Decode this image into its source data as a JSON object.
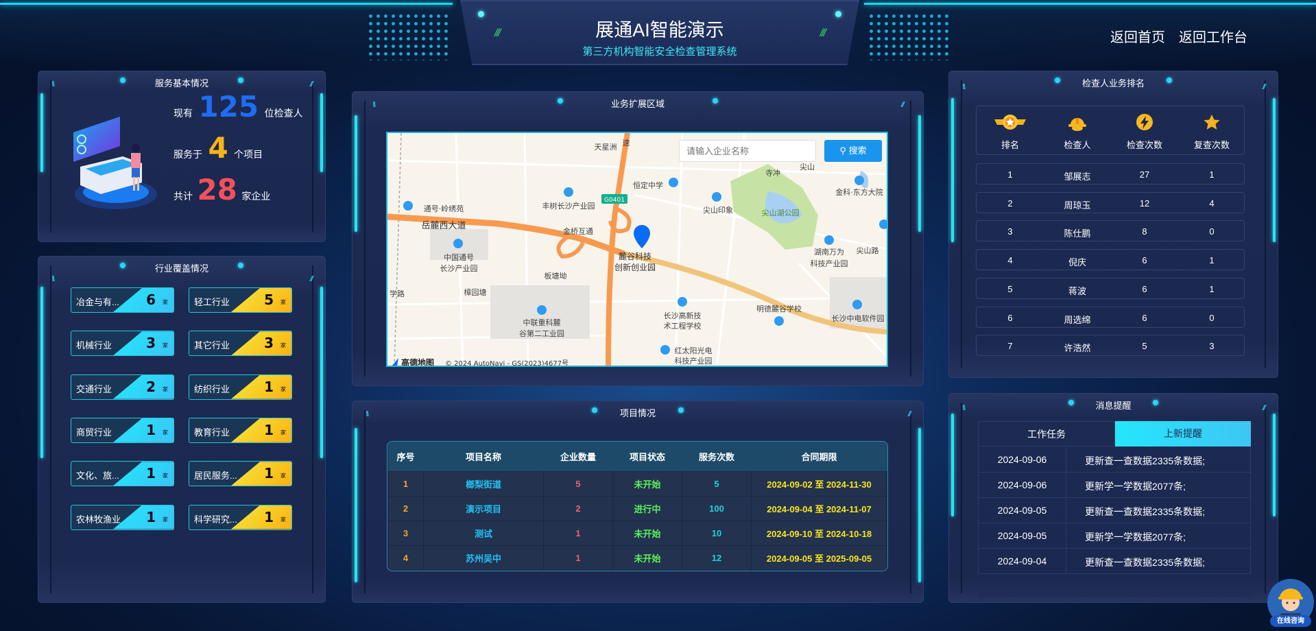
{
  "header": {
    "title": "展通AI智能演示",
    "subtitle": "第三方机构智能安全检查管理系统",
    "nav": [
      "返回首页",
      "返回工作台"
    ]
  },
  "service": {
    "title": "服务基本情况",
    "lines": [
      {
        "prefix": "现有",
        "value": "125",
        "suffix": "位检查人",
        "color": "#1f6df5"
      },
      {
        "prefix": "服务于",
        "value": "4",
        "suffix": "个项目",
        "color": "#f7b318"
      },
      {
        "prefix": "共计",
        "value": "28",
        "suffix": "家企业",
        "color": "#f4505a"
      }
    ]
  },
  "industry": {
    "title": "行业覆盖情况",
    "unit": "家",
    "items": [
      {
        "label": "冶金与有...",
        "count": "6"
      },
      {
        "label": "轻工行业",
        "count": "5"
      },
      {
        "label": "机械行业",
        "count": "3"
      },
      {
        "label": "其它行业",
        "count": "3"
      },
      {
        "label": "交通行业",
        "count": "2"
      },
      {
        "label": "纺织行业",
        "count": "1"
      },
      {
        "label": "商贸行业",
        "count": "1"
      },
      {
        "label": "教育行业",
        "count": "1"
      },
      {
        "label": "文化、旅...",
        "count": "1"
      },
      {
        "label": "居民服务...",
        "count": "1"
      },
      {
        "label": "农林牧渔业",
        "count": "1"
      },
      {
        "label": "科学研究...",
        "count": "1"
      }
    ],
    "colors": {
      "left": [
        "#22e9fb",
        "#3ac3f5"
      ],
      "right": [
        "#f5ea3d",
        "#fbb012"
      ]
    }
  },
  "map": {
    "title": "业务扩展区域",
    "search_placeholder": "请输入企业名称",
    "search_button": "搜索",
    "labels": [
      "天星洲",
      "速",
      "恒定中学",
      "丰树长沙产业园",
      "G0401",
      "通号·岭绣苑",
      "尖山印象",
      "尖山湖公园",
      "寺冲",
      "尖山",
      "金科·东方大院",
      "岳麓西大道",
      "金桥互通",
      "麓谷科技",
      "创新创业园",
      "中国通号",
      "长沙产业园",
      "湖南万为",
      "科技产业园",
      "尖山路",
      "板塘坳",
      "学路",
      "樟园塘",
      "中联重科麓",
      "谷第二工业园",
      "长沙高新技",
      "术工程学校",
      "明德麓谷学校",
      "长沙中电软件园",
      "红太阳光电",
      "科技产业园"
    ],
    "logo": "高德地图",
    "copyright": "© 2024 AutoNavi - GS(2023)4677号"
  },
  "projects": {
    "title": "项目情况",
    "columns": [
      "序号",
      "项目名称",
      "企业数量",
      "项目状态",
      "服务次数",
      "合同期限"
    ],
    "rows": [
      [
        "1",
        "榔梨街道",
        "5",
        "未开始",
        "5",
        "2024-09-02 至 2024-11-30"
      ],
      [
        "2",
        "演示项目",
        "2",
        "进行中",
        "100",
        "2024-09-04 至 2024-11-07"
      ],
      [
        "3",
        "测试",
        "1",
        "未开始",
        "10",
        "2024-09-10 至 2024-10-18"
      ],
      [
        "4",
        "苏州吴中",
        "1",
        "未开始",
        "12",
        "2024-09-05 至 2025-09-05"
      ]
    ]
  },
  "ranking": {
    "title": "检查人业务排名",
    "columns": [
      {
        "label": "排名",
        "icon": "medal-icon"
      },
      {
        "label": "检查人",
        "icon": "helmet-icon"
      },
      {
        "label": "检查次数",
        "icon": "lightning-icon"
      },
      {
        "label": "复查次数",
        "icon": "star-icon"
      }
    ],
    "rows": [
      [
        "1",
        "邹展志",
        "27",
        "1"
      ],
      [
        "2",
        "周琼玉",
        "12",
        "4"
      ],
      [
        "3",
        "陈仕鹏",
        "8",
        "0"
      ],
      [
        "4",
        "倪庆",
        "6",
        "1"
      ],
      [
        "5",
        "蒋波",
        "6",
        "1"
      ],
      [
        "6",
        "周选绵",
        "6",
        "0"
      ],
      [
        "7",
        "许浩然",
        "5",
        "3"
      ]
    ]
  },
  "messages": {
    "title": "消息提醒",
    "tabs": [
      "工作任务",
      "上新提醒"
    ],
    "active_tab": "上新提醒",
    "rows": [
      [
        "2024-09-06",
        "更新查一查数据2335条数据;"
      ],
      [
        "2024-09-06",
        "更新学一学数据2077条;"
      ],
      [
        "2024-09-05",
        "更新查一查数据2335条数据;"
      ],
      [
        "2024-09-05",
        "更新学一学数据2077条;"
      ],
      [
        "2024-09-04",
        "更新查一查数据2335条数据;"
      ]
    ]
  },
  "consult": {
    "label": "在线咨询"
  }
}
